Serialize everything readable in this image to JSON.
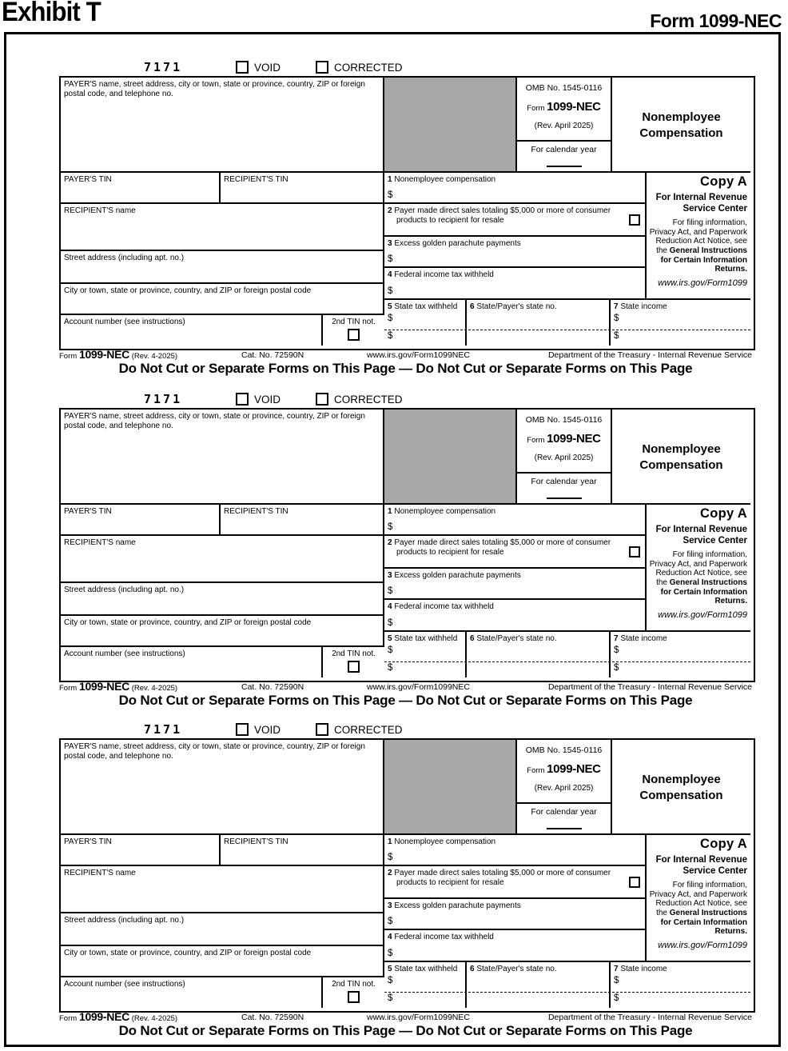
{
  "page": {
    "exhibit_title": "Exhibit T",
    "form_title": "Form 1099-NEC"
  },
  "colors": {
    "ink": "#000000",
    "gray_box": "#a9a7a7",
    "paper": "#ffffff"
  },
  "form": {
    "code": "7171",
    "void_label": "VOID",
    "corrected_label": "CORRECTED",
    "payer_box_label": "PAYER'S name, street address, city or town, state or province, country, ZIP or foreign postal code, and telephone no.",
    "omb_no": "OMB No. 1545-0116",
    "form_word": "Form",
    "form_number": "1099-NEC",
    "revision": "(Rev. April 2025)",
    "calendar_year_label": "For calendar year",
    "title_line1": "Nonemployee",
    "title_line2": "Compensation",
    "payers_tin_label": "PAYER'S TIN",
    "recipients_tin_label": "RECIPIENT'S TIN",
    "box1_num": "1",
    "box1_label": "Nonemployee compensation",
    "copy_a": "Copy A",
    "copy_a_for": "For Internal Revenue Service Center",
    "filing_note_regular": "For filing information, Privacy Act, and Paperwork Reduction Act Notice, see the ",
    "filing_note_bold": "General Instructions for Certain Information Returns.",
    "irs_url": "www.irs.gov/Form1099",
    "recipients_name_label": "RECIPIENT'S name",
    "box2_num": "2",
    "box2_label": "Payer made direct sales totaling $5,000 or more of consumer products to recipient for resale",
    "box3_num": "3",
    "box3_label": "Excess golden parachute payments",
    "street_label": "Street address (including apt. no.)",
    "box4_num": "4",
    "box4_label": "Federal income tax withheld",
    "city_label": "City or town, state or province, country, and ZIP or foreign postal code",
    "box5_num": "5",
    "box5_label": "State tax withheld",
    "box6_num": "6",
    "box6_label": "State/Payer's state no.",
    "box7_num": "7",
    "box7_label": "State income",
    "account_label": "Account number (see instructions)",
    "second_tin_label": "2nd TIN not.",
    "dollar": "$",
    "footer": {
      "form_word": "Form",
      "form_number": "1099-NEC",
      "revision": "(Rev. 4-2025)",
      "cat_no": "Cat. No. 72590N",
      "url": "www.irs.gov/Form1099NEC",
      "dept": "Department of the Treasury - Internal Revenue Service"
    },
    "do_not_cut": "Do Not Cut or Separate Forms on This Page — Do Not Cut or Separate Forms on This Page"
  }
}
